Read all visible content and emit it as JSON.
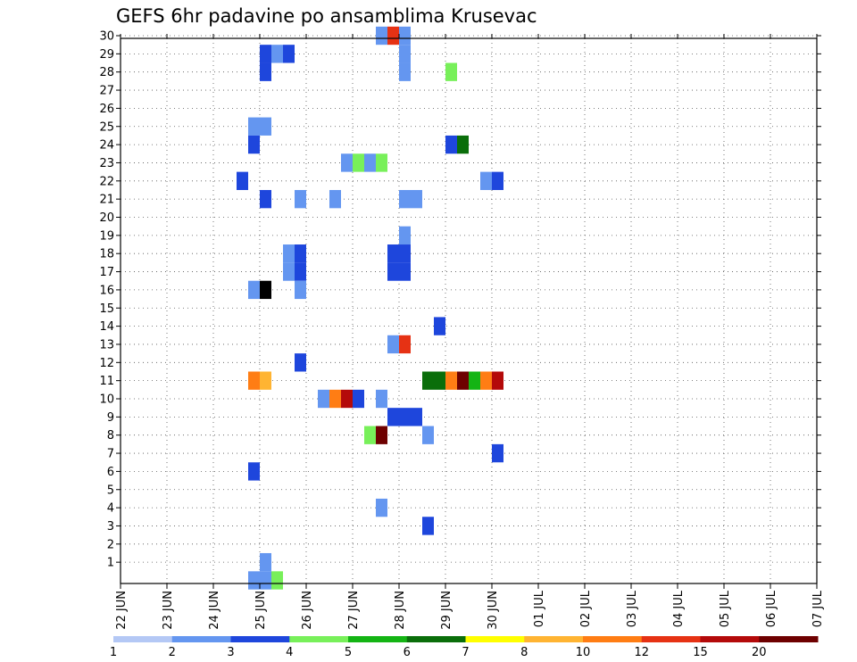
{
  "chart_data": {
    "type": "heatmap",
    "title": "GEFS 6hr padavine po ansamblima Krusevac",
    "x_tick_labels": [
      "22 JUN",
      "23 JUN",
      "24 JUN",
      "25 JUN",
      "26 JUN",
      "27 JUN",
      "28 JUN",
      "29 JUN",
      "30 JUN",
      "01 JUL",
      "02 JUL",
      "03 JUL",
      "04 JUL",
      "05 JUL",
      "06 JUL",
      "07 JUL"
    ],
    "y_tick_labels": [
      "1",
      "2",
      "3",
      "4",
      "5",
      "6",
      "7",
      "8",
      "9",
      "10",
      "11",
      "12",
      "13",
      "14",
      "15",
      "16",
      "17",
      "18",
      "19",
      "20",
      "21",
      "22",
      "23",
      "24",
      "25",
      "26",
      "27",
      "28",
      "29",
      "30"
    ],
    "steps_per_day": 4,
    "grid": true,
    "legend": {
      "position": "bottom",
      "labels": [
        "1",
        "2",
        "3",
        "4",
        "5",
        "6",
        "7",
        "8",
        "10",
        "12",
        "15",
        "20"
      ],
      "colors": [
        "#b4c8f5",
        "#6496f0",
        "#1e46dc",
        "#78f05a",
        "#14b414",
        "#0a6e0a",
        "#ffff00",
        "#ffb432",
        "#ff7d14",
        "#e63214",
        "#b40a0a",
        "#6e0000"
      ]
    },
    "cells": [
      {
        "member": 30,
        "step": 22,
        "level": 1
      },
      {
        "member": 30,
        "step": 23,
        "level": 9
      },
      {
        "member": 30,
        "step": 24,
        "level": 1
      },
      {
        "member": 29,
        "step": 12,
        "level": 2
      },
      {
        "member": 29,
        "step": 13,
        "level": 1
      },
      {
        "member": 29,
        "step": 14,
        "level": 2
      },
      {
        "member": 29,
        "step": 24,
        "level": 1
      },
      {
        "member": 28,
        "step": 12,
        "level": 2
      },
      {
        "member": 28,
        "step": 24,
        "level": 1
      },
      {
        "member": 28,
        "step": 28,
        "level": 3
      },
      {
        "member": 25,
        "step": 11,
        "level": 1
      },
      {
        "member": 25,
        "step": 12,
        "level": 1
      },
      {
        "member": 24,
        "step": 11,
        "level": 2
      },
      {
        "member": 24,
        "step": 28,
        "level": 2
      },
      {
        "member": 24,
        "step": 29,
        "level": 5
      },
      {
        "member": 23,
        "step": 19,
        "level": 1
      },
      {
        "member": 23,
        "step": 20,
        "level": 3
      },
      {
        "member": 23,
        "step": 21,
        "level": 1
      },
      {
        "member": 23,
        "step": 22,
        "level": 3
      },
      {
        "member": 22,
        "step": 10,
        "level": 2
      },
      {
        "member": 22,
        "step": 31,
        "level": 1
      },
      {
        "member": 22,
        "step": 32,
        "level": 2
      },
      {
        "member": 21,
        "step": 12,
        "level": 2
      },
      {
        "member": 21,
        "step": 15,
        "level": 1
      },
      {
        "member": 21,
        "step": 18,
        "level": 1
      },
      {
        "member": 21,
        "step": 24,
        "level": 1
      },
      {
        "member": 21,
        "step": 25,
        "level": 1
      },
      {
        "member": 19,
        "step": 24,
        "level": 1
      },
      {
        "member": 18,
        "step": 14,
        "level": 1
      },
      {
        "member": 18,
        "step": 15,
        "level": 2
      },
      {
        "member": 18,
        "step": 23,
        "level": 2
      },
      {
        "member": 18,
        "step": 24,
        "level": 2
      },
      {
        "member": 17,
        "step": 14,
        "level": 1
      },
      {
        "member": 17,
        "step": 15,
        "level": 2
      },
      {
        "member": 17,
        "step": 23,
        "level": 2
      },
      {
        "member": 17,
        "step": 24,
        "level": 2
      },
      {
        "member": 16,
        "step": 11,
        "level": 1
      },
      {
        "member": 16,
        "step": 12,
        "level": 12
      },
      {
        "member": 16,
        "step": 15,
        "level": 1
      },
      {
        "member": 14,
        "step": 27,
        "level": 2
      },
      {
        "member": 13,
        "step": 23,
        "level": 1
      },
      {
        "member": 13,
        "step": 24,
        "level": 9
      },
      {
        "member": 12,
        "step": 15,
        "level": 2
      },
      {
        "member": 11,
        "step": 11,
        "level": 8
      },
      {
        "member": 11,
        "step": 12,
        "level": 7
      },
      {
        "member": 11,
        "step": 26,
        "level": 5
      },
      {
        "member": 11,
        "step": 27,
        "level": 5
      },
      {
        "member": 11,
        "step": 28,
        "level": 8
      },
      {
        "member": 11,
        "step": 29,
        "level": 11
      },
      {
        "member": 11,
        "step": 30,
        "level": 4
      },
      {
        "member": 11,
        "step": 31,
        "level": 8
      },
      {
        "member": 11,
        "step": 32,
        "level": 10
      },
      {
        "member": 10,
        "step": 17,
        "level": 1
      },
      {
        "member": 10,
        "step": 18,
        "level": 8
      },
      {
        "member": 10,
        "step": 19,
        "level": 10
      },
      {
        "member": 10,
        "step": 20,
        "level": 2
      },
      {
        "member": 10,
        "step": 22,
        "level": 1
      },
      {
        "member": 9,
        "step": 23,
        "level": 2
      },
      {
        "member": 9,
        "step": 24,
        "level": 2
      },
      {
        "member": 9,
        "step": 25,
        "level": 2
      },
      {
        "member": 8,
        "step": 21,
        "level": 3
      },
      {
        "member": 8,
        "step": 22,
        "level": 11
      },
      {
        "member": 8,
        "step": 26,
        "level": 1
      },
      {
        "member": 7,
        "step": 32,
        "level": 2
      },
      {
        "member": 6,
        "step": 11,
        "level": 2
      },
      {
        "member": 4,
        "step": 22,
        "level": 1
      },
      {
        "member": 3,
        "step": 26,
        "level": 2
      },
      {
        "member": 1,
        "step": 12,
        "level": 1
      },
      {
        "member": 0,
        "step": 11,
        "level": 1
      },
      {
        "member": 0,
        "step": 12,
        "level": 1
      },
      {
        "member": 0,
        "step": 13,
        "level": 3
      }
    ]
  }
}
